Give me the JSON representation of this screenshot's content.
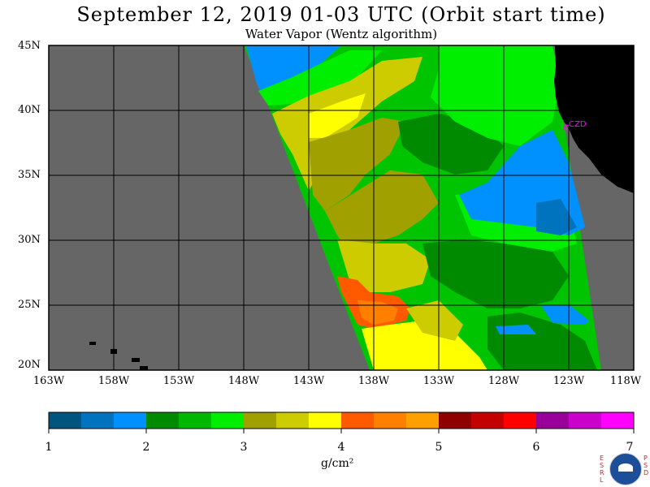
{
  "title": "September 12, 2019  01-03 UTC  (Orbit start time)",
  "subtitle": "Water Vapor (Wentz algorithm)",
  "lat_labels": [
    "45N",
    "40N",
    "35N",
    "30N",
    "25N",
    "20N"
  ],
  "lon_labels": [
    "163W",
    "158W",
    "153W",
    "148W",
    "143W",
    "138W",
    "133W",
    "128W",
    "123W",
    "118W"
  ],
  "station_label": "CZD",
  "colorbar": {
    "ticks": [
      "1",
      "2",
      "3",
      "4",
      "5",
      "6",
      "7"
    ],
    "units": "g/cm²",
    "colors": [
      "#00557f",
      "#0073bf",
      "#0091ff",
      "#008a00",
      "#00b800",
      "#00ee00",
      "#a0a000",
      "#cccc00",
      "#ffff00",
      "#ff5a00",
      "#ff7f00",
      "#ff9f00",
      "#900000",
      "#c40000",
      "#ff0000",
      "#990099",
      "#cc00cc",
      "#ff00ff"
    ]
  },
  "logo": {
    "left_letters": "ESRL",
    "right_letters": "PSD",
    "name": "NOAA"
  }
}
